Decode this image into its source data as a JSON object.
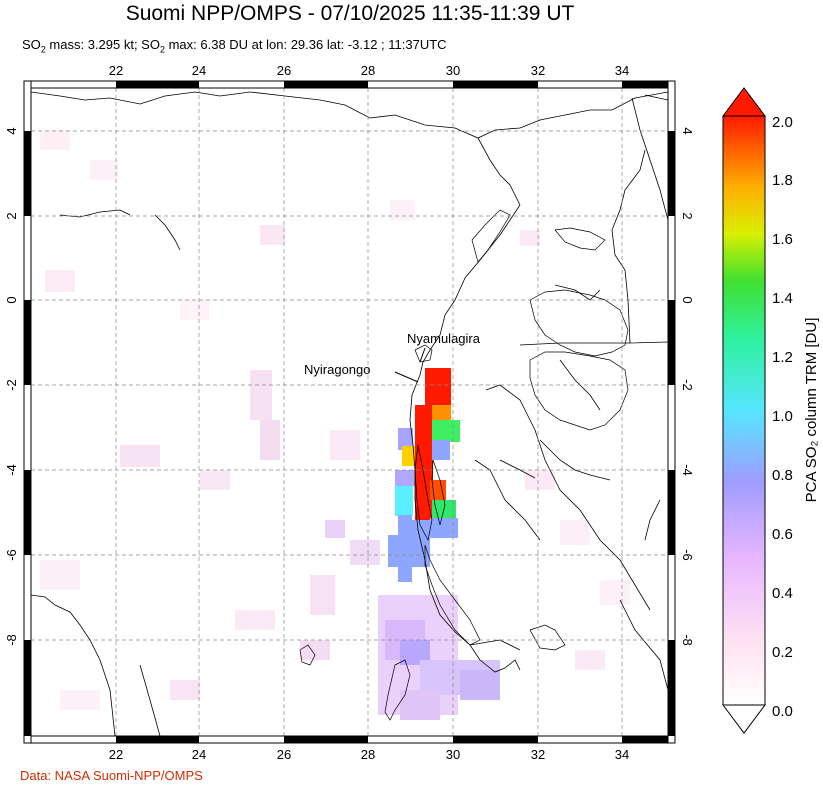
{
  "header": {
    "title": "Suomi NPP/OMPS - 07/10/2025 11:35-11:39 UT",
    "subtitle_prefix": "SO",
    "subtitle_sub1": "2",
    "subtitle_mid": " mass: 3.295 kt; SO",
    "subtitle_sub2": "2",
    "subtitle_rest": " max: 6.38 DU at lon: 29.36 lat: -3.12 ; 11:37UTC"
  },
  "map": {
    "lon_ticks": [
      "22",
      "24",
      "26",
      "28",
      "30",
      "32",
      "34"
    ],
    "lat_ticks": [
      "4",
      "2",
      "0",
      "-2",
      "-4",
      "-6",
      "-8"
    ],
    "volcanoes": [
      {
        "name": "Nyamulagira"
      },
      {
        "name": "Nyiragongo"
      }
    ]
  },
  "colorbar": {
    "label": "PCA SO₂ column TRM [DU]",
    "ticks": [
      "2.0",
      "1.8",
      "1.6",
      "1.4",
      "1.2",
      "1.0",
      "0.8",
      "0.6",
      "0.4",
      "0.2",
      "0.0"
    ],
    "colors": [
      "#ff1a00",
      "#ff8800",
      "#ffd500",
      "#9ef000",
      "#2ee860",
      "#3ff0e8",
      "#8ab8ff",
      "#a89cff",
      "#d8aaff",
      "#ffd2ee",
      "#fff0f6",
      "#ffffff"
    ]
  },
  "footer": {
    "credit": "Data: NASA Suomi-NPP/OMPS"
  }
}
